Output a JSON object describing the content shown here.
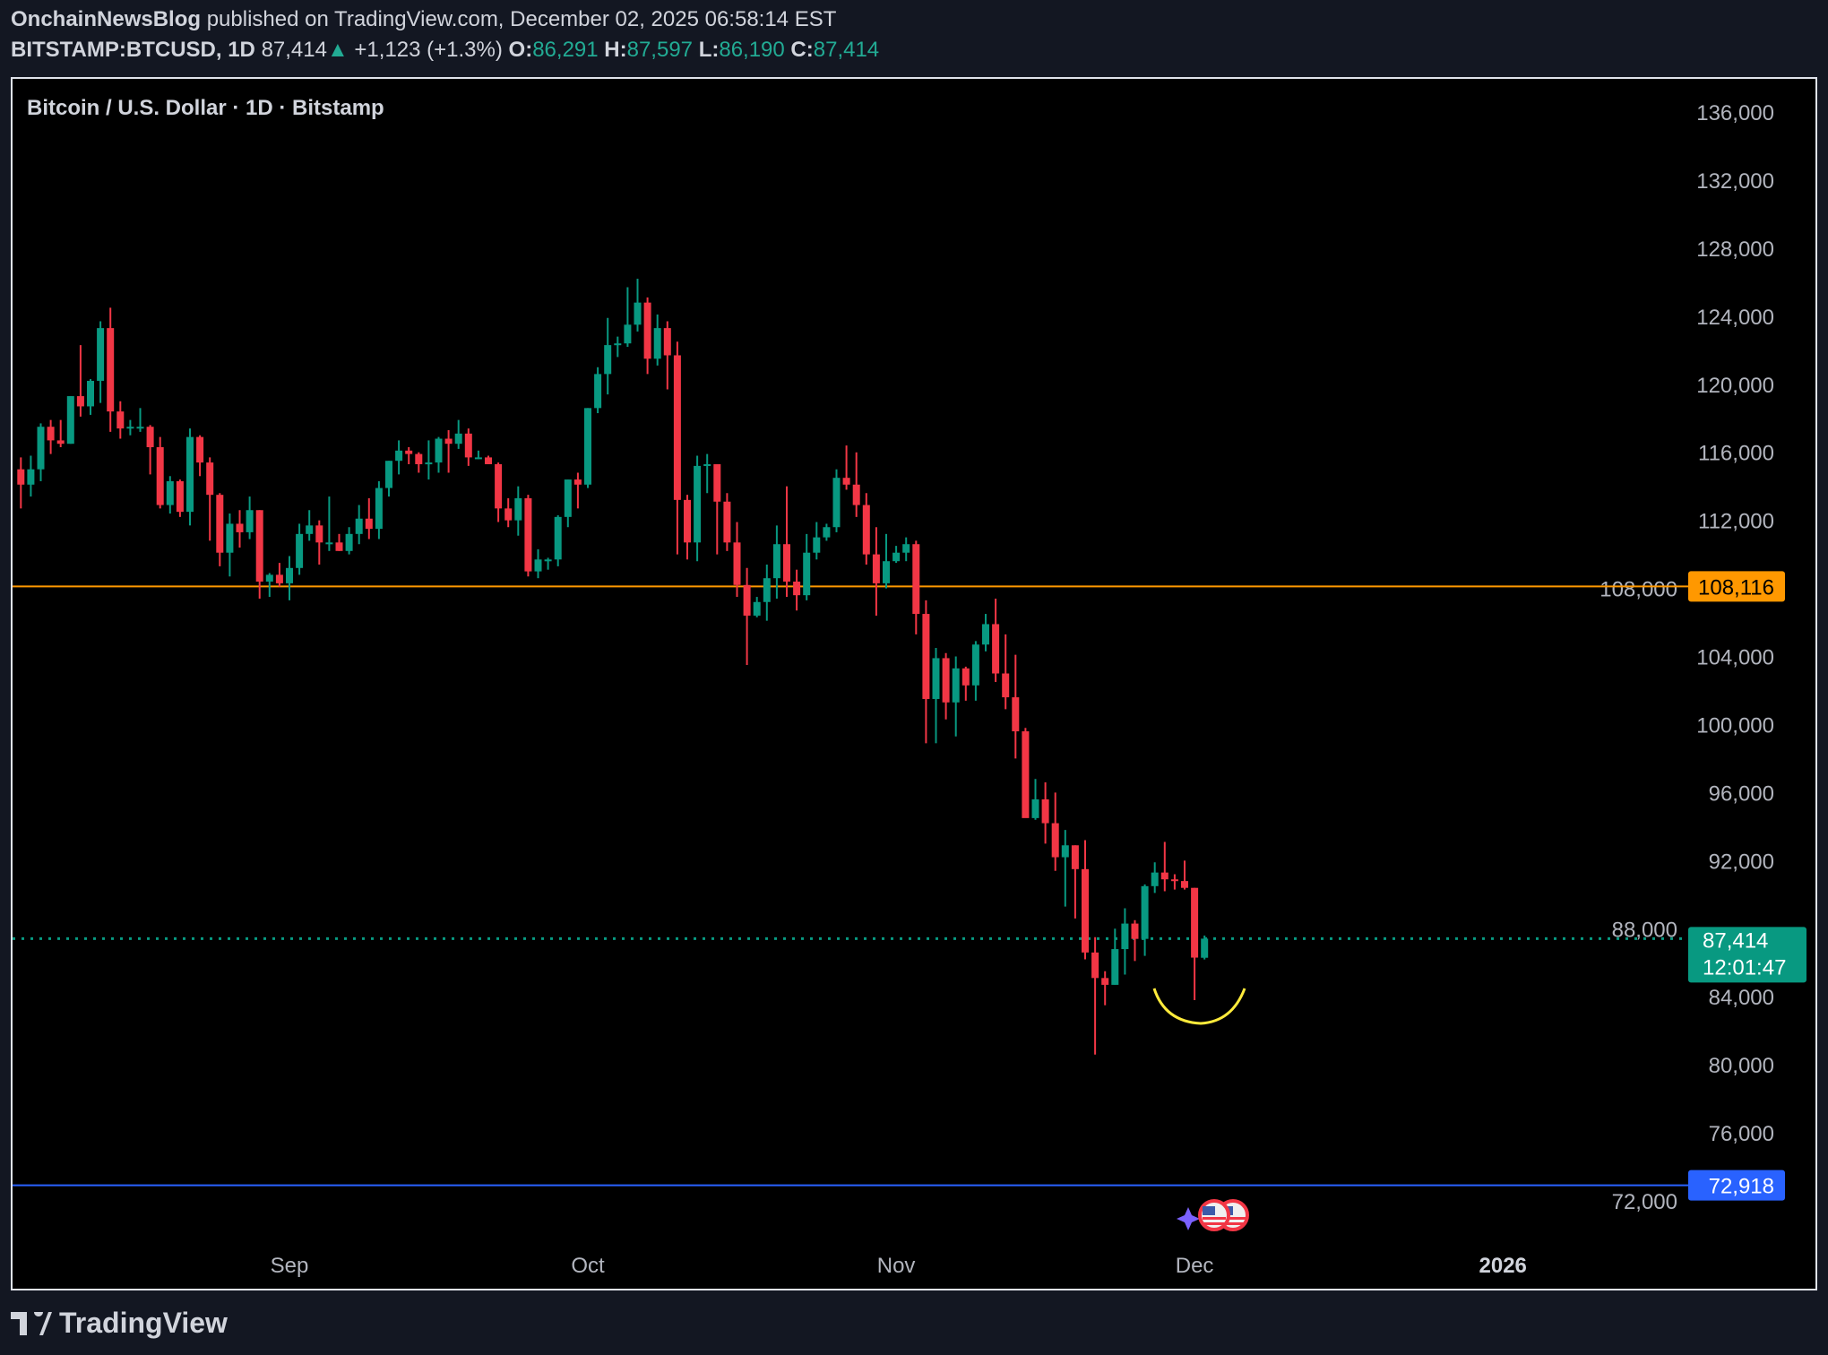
{
  "header": {
    "author": "OnchainNewsBlog",
    "published": "published on TradingView.com, December 02, 2025 06:58:14 EST",
    "symbol": "BITSTAMP:BTCUSD, 1D",
    "last": "87,414",
    "change": "+1,123 (+1.3%)",
    "o_label": "O:",
    "o": "86,291",
    "h_label": "H:",
    "h": "87,597",
    "l_label": "L:",
    "l": "86,190",
    "c_label": "C:",
    "c": "87,414"
  },
  "footer": {
    "brand": "TradingView"
  },
  "colors": {
    "up": "#089981",
    "down": "#f23645",
    "orange_line": "#ff9800",
    "blue_line": "#2962ff",
    "annotation": "#ffeb3b",
    "background": "#000000"
  },
  "chart_data": {
    "type": "candlestick",
    "title": "Bitcoin / U.S. Dollar · 1D · Bitstamp",
    "ylim": [
      70000,
      137500
    ],
    "y_ticks": [
      "136,000",
      "132,000",
      "128,000",
      "124,000",
      "120,000",
      "116,000",
      "112,000",
      "108,000",
      "104,000",
      "100,000",
      "96,000",
      "92,000",
      "88,000",
      "84,000",
      "80,000",
      "76,000",
      "72,000"
    ],
    "x_ticks": [
      {
        "label": "Sep",
        "date": "2025-09-01"
      },
      {
        "label": "Oct",
        "date": "2025-10-01"
      },
      {
        "label": "Nov",
        "date": "2025-11-01"
      },
      {
        "label": "Dec",
        "date": "2025-12-01"
      },
      {
        "label": "2026",
        "date": "2026-01-01",
        "bold": true
      }
    ],
    "horizontal_lines": [
      {
        "price": 108116,
        "label": "108,116",
        "color": "#ff9800"
      },
      {
        "price": 72918,
        "label": "72,918",
        "color": "#2962ff"
      }
    ],
    "last_price": {
      "price": 87414,
      "label": "87,414",
      "countdown": "12:01:47",
      "color": "#089981"
    },
    "annotation": "yellow curved stroke under latest candles",
    "events": [
      "us-flag-economic-event-icon",
      "us-flag-economic-event-icon",
      "sparkle-icon"
    ],
    "columns": [
      "date",
      "open",
      "high",
      "low",
      "close"
    ],
    "candles": [
      [
        "2025-08-05",
        115000,
        115700,
        112700,
        114100
      ],
      [
        "2025-08-06",
        114100,
        115800,
        113400,
        115000
      ],
      [
        "2025-08-07",
        115000,
        117700,
        114300,
        117500
      ],
      [
        "2025-08-08",
        117500,
        117900,
        115900,
        116700
      ],
      [
        "2025-08-09",
        116700,
        117900,
        116300,
        116500
      ],
      [
        "2025-08-10",
        116500,
        119300,
        116500,
        119300
      ],
      [
        "2025-08-11",
        119300,
        122300,
        118100,
        118700
      ],
      [
        "2025-08-12",
        118700,
        120300,
        118200,
        120200
      ],
      [
        "2025-08-13",
        120200,
        123700,
        118900,
        123300
      ],
      [
        "2025-08-14",
        123300,
        124500,
        117200,
        118400
      ],
      [
        "2025-08-15",
        118400,
        119000,
        116800,
        117400
      ],
      [
        "2025-08-16",
        117400,
        117900,
        117000,
        117500
      ],
      [
        "2025-08-17",
        117500,
        118600,
        117200,
        117500
      ],
      [
        "2025-08-18",
        117500,
        117600,
        114700,
        116300
      ],
      [
        "2025-08-19",
        116300,
        116900,
        112700,
        112900
      ],
      [
        "2025-08-20",
        112900,
        114600,
        112400,
        114300
      ],
      [
        "2025-08-21",
        114300,
        114400,
        112200,
        112500
      ],
      [
        "2025-08-22",
        112500,
        117400,
        111700,
        116900
      ],
      [
        "2025-08-23",
        116900,
        117000,
        114600,
        115400
      ],
      [
        "2025-08-24",
        115400,
        115700,
        110800,
        113500
      ],
      [
        "2025-08-25",
        113500,
        113600,
        109300,
        110100
      ],
      [
        "2025-08-26",
        110100,
        112400,
        108700,
        111800
      ],
      [
        "2025-08-27",
        111800,
        112600,
        110400,
        111300
      ],
      [
        "2025-08-28",
        111300,
        113400,
        110900,
        112600
      ],
      [
        "2025-08-29",
        112600,
        112600,
        107400,
        108400
      ],
      [
        "2025-08-30",
        108400,
        108900,
        107500,
        108800
      ],
      [
        "2025-08-31",
        108800,
        109500,
        108100,
        108300
      ],
      [
        "2025-09-01",
        108300,
        109900,
        107300,
        109200
      ],
      [
        "2025-09-02",
        109200,
        111800,
        108800,
        111200
      ],
      [
        "2025-09-03",
        111200,
        112600,
        110800,
        111700
      ],
      [
        "2025-09-04",
        111700,
        112000,
        109400,
        110700
      ],
      [
        "2025-09-05",
        110700,
        113400,
        110200,
        110700
      ],
      [
        "2025-09-06",
        110700,
        111200,
        110200,
        110200
      ],
      [
        "2025-09-07",
        110200,
        111600,
        110000,
        111200
      ],
      [
        "2025-09-08",
        111200,
        112900,
        110600,
        112100
      ],
      [
        "2025-09-09",
        112100,
        113300,
        110900,
        111500
      ],
      [
        "2025-09-10",
        111500,
        114300,
        110900,
        113900
      ],
      [
        "2025-09-11",
        113900,
        115500,
        113400,
        115500
      ],
      [
        "2025-09-12",
        115500,
        116700,
        114700,
        116100
      ],
      [
        "2025-09-13",
        116100,
        116300,
        115300,
        115900
      ],
      [
        "2025-09-14",
        115900,
        116000,
        114800,
        115300
      ],
      [
        "2025-09-15",
        115300,
        116700,
        114400,
        115400
      ],
      [
        "2025-09-16",
        115400,
        116900,
        114800,
        116800
      ],
      [
        "2025-09-17",
        116800,
        117300,
        114800,
        116500
      ],
      [
        "2025-09-18",
        116500,
        117900,
        116200,
        117100
      ],
      [
        "2025-09-19",
        117100,
        117400,
        115200,
        115700
      ],
      [
        "2025-09-20",
        115700,
        116100,
        115600,
        115700
      ],
      [
        "2025-09-21",
        115700,
        115800,
        115300,
        115300
      ],
      [
        "2025-09-22",
        115300,
        115400,
        111900,
        112700
      ],
      [
        "2025-09-23",
        112700,
        113300,
        111600,
        112000
      ],
      [
        "2025-09-24",
        112000,
        114000,
        111100,
        113300
      ],
      [
        "2025-09-25",
        113300,
        113500,
        108700,
        109000
      ],
      [
        "2025-09-26",
        109000,
        110300,
        108600,
        109700
      ],
      [
        "2025-09-27",
        109700,
        109800,
        109100,
        109700
      ],
      [
        "2025-09-28",
        109700,
        112300,
        109300,
        112200
      ],
      [
        "2025-09-29",
        112200,
        114400,
        111600,
        114400
      ],
      [
        "2025-09-30",
        114400,
        114800,
        112700,
        114100
      ],
      [
        "2025-10-01",
        114100,
        118600,
        113900,
        118600
      ],
      [
        "2025-10-02",
        118600,
        121000,
        118300,
        120600
      ],
      [
        "2025-10-03",
        120600,
        123900,
        119400,
        122300
      ],
      [
        "2025-10-04",
        122300,
        122800,
        121600,
        122400
      ],
      [
        "2025-10-05",
        122400,
        125700,
        122200,
        123500
      ],
      [
        "2025-10-06",
        123500,
        126200,
        123100,
        124800
      ],
      [
        "2025-10-07",
        124800,
        125100,
        120600,
        121500
      ],
      [
        "2025-10-08",
        121500,
        124100,
        121100,
        123300
      ],
      [
        "2025-10-09",
        123300,
        123700,
        119700,
        121700
      ],
      [
        "2025-10-10",
        121700,
        122500,
        110000,
        113200
      ],
      [
        "2025-10-11",
        113200,
        113500,
        109700,
        110700
      ],
      [
        "2025-10-12",
        110700,
        115800,
        109600,
        115200
      ],
      [
        "2025-10-13",
        115200,
        115900,
        113600,
        115300
      ],
      [
        "2025-10-14",
        115300,
        115300,
        110000,
        113100
      ],
      [
        "2025-10-15",
        113100,
        113600,
        110200,
        110700
      ],
      [
        "2025-10-16",
        110700,
        111900,
        107500,
        108200
      ],
      [
        "2025-10-17",
        108200,
        109200,
        103500,
        106400
      ],
      [
        "2025-10-18",
        106400,
        107500,
        106300,
        107200
      ],
      [
        "2025-10-19",
        107200,
        109400,
        106100,
        108600
      ],
      [
        "2025-10-20",
        108600,
        111700,
        107400,
        110600
      ],
      [
        "2025-10-21",
        110600,
        114000,
        107500,
        108400
      ],
      [
        "2025-10-22",
        108400,
        109100,
        106700,
        107600
      ],
      [
        "2025-10-23",
        107600,
        111200,
        107300,
        110100
      ],
      [
        "2025-10-24",
        110100,
        111900,
        109700,
        111000
      ],
      [
        "2025-10-25",
        111000,
        111800,
        110800,
        111600
      ],
      [
        "2025-10-26",
        111600,
        115000,
        111300,
        114500
      ],
      [
        "2025-10-27",
        114500,
        116400,
        113800,
        114100
      ],
      [
        "2025-10-28",
        114100,
        116000,
        112200,
        112900
      ],
      [
        "2025-10-29",
        112900,
        113600,
        109400,
        110000
      ],
      [
        "2025-10-30",
        110000,
        111600,
        106400,
        108300
      ],
      [
        "2025-10-31",
        108300,
        111200,
        108000,
        109600
      ],
      [
        "2025-11-01",
        109600,
        110500,
        109500,
        110100
      ],
      [
        "2025-11-02",
        110100,
        111000,
        109600,
        110600
      ],
      [
        "2025-11-03",
        110600,
        110800,
        105300,
        106500
      ],
      [
        "2025-11-04",
        106500,
        107300,
        98900,
        101500
      ],
      [
        "2025-11-05",
        101500,
        104500,
        98900,
        103900
      ],
      [
        "2025-11-06",
        103900,
        104200,
        100300,
        101300
      ],
      [
        "2025-11-07",
        101300,
        104000,
        99300,
        103300
      ],
      [
        "2025-11-08",
        103300,
        103400,
        101400,
        102300
      ],
      [
        "2025-11-09",
        102300,
        104900,
        101400,
        104700
      ],
      [
        "2025-11-10",
        104700,
        106500,
        104300,
        105900
      ],
      [
        "2025-11-11",
        105900,
        107400,
        102500,
        103000
      ],
      [
        "2025-11-12",
        103000,
        105300,
        100900,
        101600
      ],
      [
        "2025-11-13",
        101600,
        104100,
        98000,
        99600
      ],
      [
        "2025-11-14",
        99600,
        99800,
        94600,
        94500
      ],
      [
        "2025-11-15",
        94500,
        96800,
        94400,
        95600
      ],
      [
        "2025-11-16",
        95600,
        96600,
        93000,
        94200
      ],
      [
        "2025-11-17",
        94200,
        96000,
        91400,
        92200
      ],
      [
        "2025-11-18",
        92200,
        93800,
        89300,
        92900
      ],
      [
        "2025-11-19",
        92900,
        92900,
        88600,
        91500
      ],
      [
        "2025-11-20",
        91500,
        93200,
        86200,
        86600
      ],
      [
        "2025-11-21",
        86600,
        87500,
        80600,
        85100
      ],
      [
        "2025-11-22",
        85100,
        85500,
        83500,
        84700
      ],
      [
        "2025-11-23",
        84700,
        88000,
        84700,
        86800
      ],
      [
        "2025-11-24",
        86800,
        89200,
        85300,
        88300
      ],
      [
        "2025-11-25",
        88300,
        88500,
        86100,
        87400
      ],
      [
        "2025-11-26",
        87400,
        90600,
        86400,
        90500
      ],
      [
        "2025-11-27",
        90500,
        91900,
        90100,
        91300
      ],
      [
        "2025-11-28",
        91300,
        93100,
        90200,
        90900
      ],
      [
        "2025-11-29",
        90900,
        91200,
        90300,
        90800
      ],
      [
        "2025-11-30",
        90800,
        92000,
        90300,
        90400
      ],
      [
        "2025-12-01",
        90400,
        90400,
        83800,
        86300
      ],
      [
        "2025-12-02",
        86291,
        87597,
        86190,
        87414
      ]
    ]
  }
}
